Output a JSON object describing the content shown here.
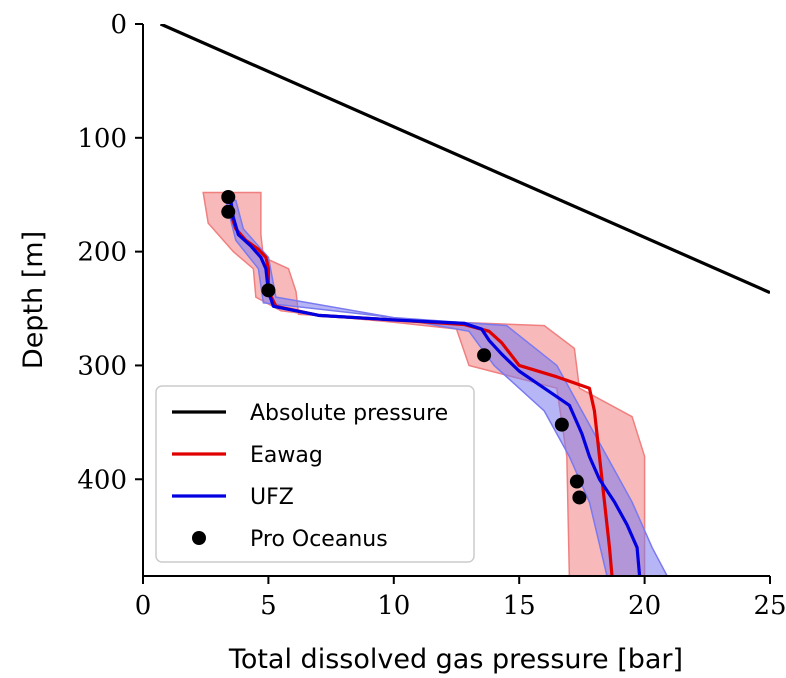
{
  "chart_data": {
    "type": "line",
    "xlabel": "Total dissolved gas pressure [bar]",
    "ylabel": "Depth [m]",
    "xlim": [
      0,
      25
    ],
    "ylim": [
      0,
      485
    ],
    "y_inverted": true,
    "x_ticks": [
      0,
      5,
      10,
      15,
      20,
      25
    ],
    "y_ticks": [
      0,
      100,
      200,
      300,
      400
    ],
    "grid": false,
    "legend_placement": "lower-left",
    "series": [
      {
        "name": "Absolute pressure",
        "color": "#000000",
        "kind": "line",
        "x": [
          0.7,
          25.0
        ],
        "y": [
          0,
          236
        ]
      },
      {
        "name": "Eawag",
        "color": "#e00000",
        "kind": "line",
        "x": [
          3.5,
          3.55,
          3.7,
          4.1,
          4.6,
          4.9,
          5.0,
          5.0,
          5.3,
          7.0,
          10.0,
          12.8,
          13.8,
          14.3,
          15.0,
          16.5,
          17.8,
          18.0,
          18.2,
          18.4,
          18.6,
          18.7
        ],
        "y": [
          155,
          170,
          180,
          190,
          198,
          205,
          215,
          235,
          248,
          256,
          260,
          264,
          270,
          280,
          300,
          310,
          320,
          340,
          380,
          420,
          460,
          485
        ]
      },
      {
        "name": "UFZ",
        "color": "#0000e0",
        "kind": "line",
        "x": [
          3.5,
          3.6,
          3.8,
          4.3,
          4.7,
          4.9,
          5.0,
          5.2,
          7.0,
          10.0,
          12.8,
          13.5,
          13.8,
          14.3,
          15.0,
          16.0,
          17.0,
          17.5,
          17.8,
          18.2,
          18.8,
          19.3,
          19.7,
          19.8
        ],
        "y": [
          155,
          170,
          185,
          195,
          205,
          215,
          235,
          248,
          256,
          260,
          263,
          268,
          278,
          290,
          305,
          320,
          335,
          360,
          380,
          400,
          420,
          440,
          460,
          485
        ]
      },
      {
        "name": "Pro Oceanus",
        "color": "#000000",
        "kind": "scatter",
        "x": [
          3.4,
          3.4,
          5.0,
          13.6,
          16.7,
          17.3,
          17.4
        ],
        "y": [
          152,
          165,
          234,
          291,
          352,
          402,
          416
        ]
      }
    ],
    "bands": [
      {
        "series": "Eawag",
        "color": "#f08080",
        "upper_x": [
          4.7,
          4.7,
          4.8,
          5.8,
          6.1,
          6.2,
          10.0,
          16.0,
          17.2,
          17.4,
          19.5,
          20.0,
          20.0,
          20.0
        ],
        "upper_y": [
          148,
          185,
          205,
          215,
          235,
          255,
          260,
          265,
          285,
          320,
          345,
          380,
          420,
          485
        ],
        "lower_x": [
          2.4,
          2.6,
          3.6,
          4.4,
          4.5,
          5.5,
          7.0,
          10.0,
          12.5,
          13.0,
          16.5,
          16.9,
          17.0
        ],
        "lower_y": [
          148,
          175,
          200,
          215,
          240,
          252,
          256,
          262,
          268,
          300,
          320,
          380,
          485
        ]
      },
      {
        "series": "UFZ",
        "color": "#7a7af0",
        "upper_x": [
          3.7,
          4.0,
          5.0,
          5.3,
          10.0,
          14.5,
          16.5,
          17.5,
          18.5,
          19.5,
          20.3,
          20.9
        ],
        "upper_y": [
          155,
          180,
          205,
          240,
          258,
          265,
          300,
          340,
          380,
          420,
          460,
          485
        ],
        "lower_x": [
          3.3,
          3.7,
          4.6,
          4.8,
          10.0,
          13.0,
          14.0,
          16.0,
          17.0,
          17.8,
          18.5
        ],
        "lower_y": [
          155,
          190,
          215,
          245,
          258,
          270,
          300,
          340,
          380,
          420,
          485
        ]
      }
    ],
    "legend": [
      {
        "label": "Absolute pressure",
        "color": "#000000",
        "marker": "line"
      },
      {
        "label": "Eawag",
        "color": "#e00000",
        "marker": "line"
      },
      {
        "label": "UFZ",
        "color": "#0000e0",
        "marker": "line"
      },
      {
        "label": "Pro Oceanus",
        "color": "#000000",
        "marker": "dot"
      }
    ]
  }
}
